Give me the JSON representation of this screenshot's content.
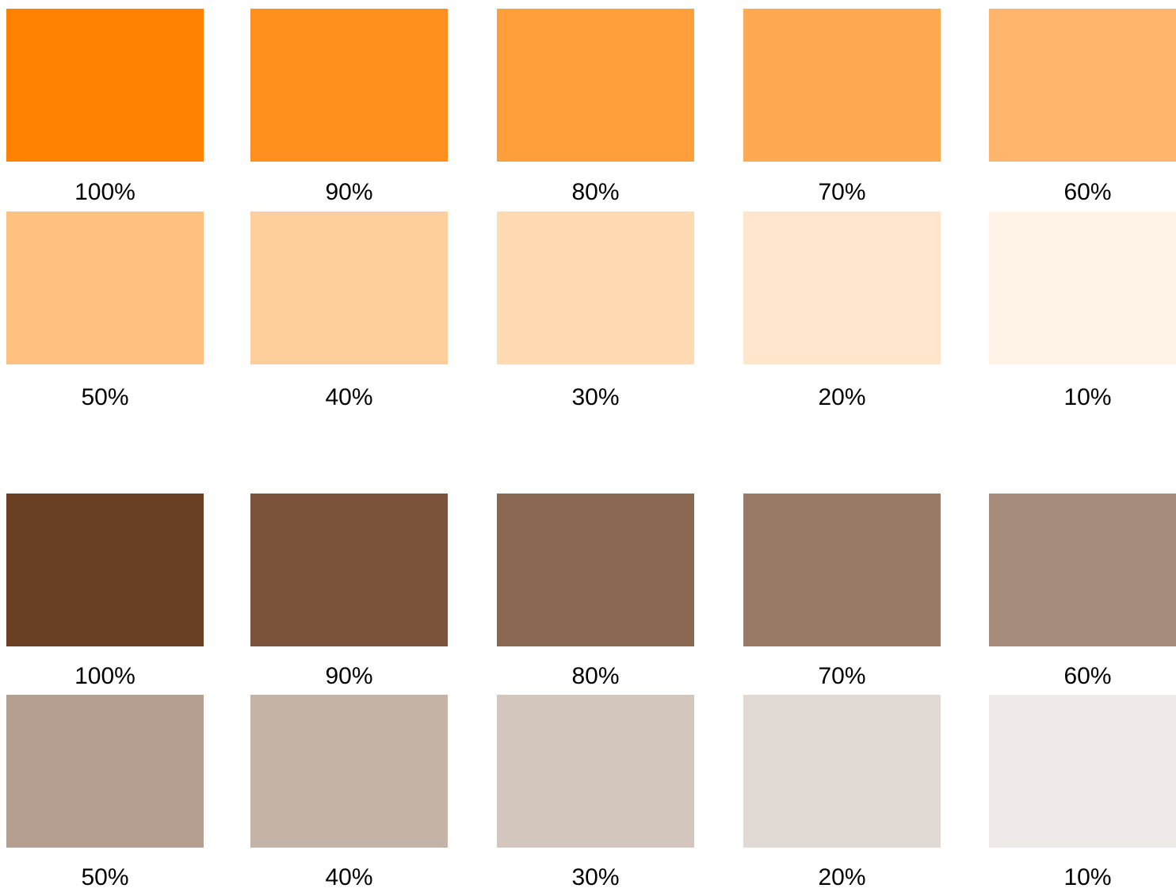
{
  "palettes": [
    {
      "rows": [
        {
          "swatches": [
            {
              "label": "100%",
              "color": "#ff8300"
            },
            {
              "label": "90%",
              "color": "#ff8f1f"
            },
            {
              "label": "80%",
              "color": "#ff9f3b"
            },
            {
              "label": "70%",
              "color": "#ffaa52"
            },
            {
              "label": "60%",
              "color": "#ffb56b"
            }
          ]
        },
        {
          "swatches": [
            {
              "label": "50%",
              "color": "#ffc080"
            },
            {
              "label": "40%",
              "color": "#ffcf9b"
            },
            {
              "label": "30%",
              "color": "#ffdab3"
            },
            {
              "label": "20%",
              "color": "#ffe6cc"
            },
            {
              "label": "10%",
              "color": "#fff2e6"
            }
          ]
        }
      ]
    },
    {
      "rows": [
        {
          "swatches": [
            {
              "label": "100%",
              "color": "#6b3f24"
            },
            {
              "label": "90%",
              "color": "#7b533b"
            },
            {
              "label": "80%",
              "color": "#8a6751"
            },
            {
              "label": "70%",
              "color": "#987a66"
            },
            {
              "label": "60%",
              "color": "#a68c7b"
            }
          ]
        },
        {
          "swatches": [
            {
              "label": "50%",
              "color": "#b59f91"
            },
            {
              "label": "40%",
              "color": "#c4b3a7"
            },
            {
              "label": "30%",
              "color": "#d2c6bd"
            },
            {
              "label": "20%",
              "color": "#e1d9d3"
            },
            {
              "label": "10%",
              "color": "#f0ebe9"
            }
          ]
        }
      ]
    }
  ]
}
